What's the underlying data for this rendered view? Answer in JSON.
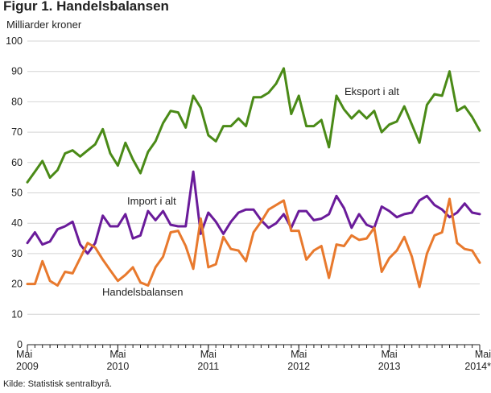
{
  "figure": {
    "title": "Figur 1. Handelsbalansen",
    "unit_label": "Milliarder kroner",
    "source": "Kilde: Statistisk sentralbyrå."
  },
  "chart_data": {
    "type": "line",
    "title": "Figur 1. Handelsbalansen",
    "ylabel": "Milliarder kroner",
    "xlabel": "",
    "ylim": [
      0,
      100
    ],
    "yticks": [
      0,
      10,
      20,
      30,
      40,
      50,
      60,
      70,
      80,
      90,
      100
    ],
    "grid": true,
    "x_start": "Mai 2009",
    "x_end": "Mai 2014*",
    "x_ticks": [
      {
        "index": 0,
        "month": "Mai",
        "year": "2009"
      },
      {
        "index": 12,
        "month": "Mai",
        "year": "2010"
      },
      {
        "index": 24,
        "month": "Mai",
        "year": "2011"
      },
      {
        "index": 36,
        "month": "Mai",
        "year": "2012"
      },
      {
        "index": 48,
        "month": "Mai",
        "year": "2013"
      },
      {
        "index": 60,
        "month": "Mai",
        "year": "2014*"
      }
    ],
    "series": [
      {
        "name": "Eksport i alt",
        "color": "#4a8a17",
        "label_pos": "upper-right",
        "values": [
          53.5,
          57,
          60.5,
          55,
          57.5,
          63,
          64,
          62,
          64,
          66,
          71,
          63,
          59,
          66.5,
          61,
          56.5,
          63.5,
          67,
          73,
          77,
          76.5,
          71.5,
          82,
          78,
          69,
          67,
          72,
          72,
          74.5,
          72,
          81.5,
          81.5,
          83,
          86,
          91,
          76,
          82,
          72,
          72,
          74,
          65,
          82,
          77.5,
          74.5,
          77,
          74.5,
          77,
          70,
          72.5,
          73.5,
          78.5,
          72.5,
          66.5,
          79,
          82.5,
          82,
          90,
          77,
          78.5,
          75,
          70.5
        ]
      },
      {
        "name": "Import i alt",
        "color": "#6a1b9a",
        "label_pos": "middle-left",
        "values": [
          33.5,
          37,
          33,
          34,
          38,
          39,
          40.5,
          33,
          30,
          33.5,
          42.5,
          39,
          39,
          43,
          35,
          36,
          44,
          41,
          44,
          39.5,
          39,
          39,
          57,
          36.5,
          43.5,
          40.5,
          36.5,
          40.5,
          43.5,
          44.5,
          44.5,
          41,
          38.5,
          40,
          43,
          38.5,
          44,
          44,
          41,
          41.5,
          43,
          49,
          45,
          38.5,
          43,
          39.5,
          38.5,
          45.5,
          44,
          42,
          43,
          43.5,
          47.5,
          49,
          46,
          44.5,
          42,
          43.5,
          46.5,
          43.5,
          43
        ]
      },
      {
        "name": "Handelsbalansen",
        "color": "#e8792d",
        "label_pos": "lower-left",
        "values": [
          20,
          20,
          27.5,
          21,
          19.5,
          24,
          23.5,
          28.5,
          33.5,
          32,
          28,
          24.5,
          21,
          23,
          25.5,
          20.5,
          19.5,
          25.5,
          29,
          37,
          37.5,
          32.5,
          25,
          41.5,
          25.5,
          26.5,
          35.5,
          31.5,
          31,
          27.5,
          37,
          40.5,
          44.5,
          46,
          47.5,
          37.5,
          37.5,
          28,
          31,
          32.5,
          22,
          33,
          32.5,
          36,
          34.5,
          35,
          38.5,
          24,
          28.5,
          31,
          35.5,
          29,
          19,
          30,
          36,
          37,
          48,
          33.5,
          31.5,
          31,
          27
        ]
      }
    ]
  }
}
